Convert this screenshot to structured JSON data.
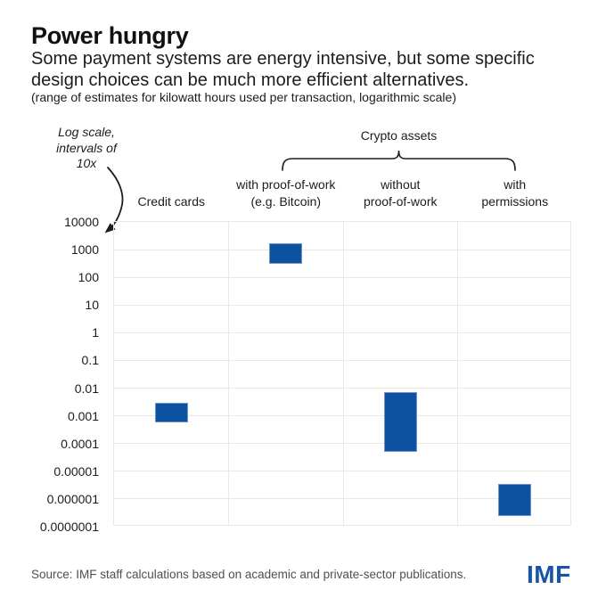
{
  "header": {
    "title": "Power hungry",
    "subtitle_lines": [
      "Some payment systems are energy intensive, but some specific",
      "design choices can be much more efficient alternatives."
    ],
    "note": "(range of estimates for kilowatt hours used per transaction, logarithmic scale)"
  },
  "annotations": {
    "log_scale_lines": [
      "Log scale,",
      "intervals of",
      "10x"
    ],
    "group_label": "Crypto assets"
  },
  "chart_data": {
    "type": "bar",
    "subtype": "floating-range-bars",
    "title": "Power hungry",
    "ylabel": "kilowatt hours used per transaction (log scale)",
    "scale": "logarithmic",
    "grid": true,
    "categories": [
      "Credit cards",
      "with proof-of-work (e.g. Bitcoin)",
      "without proof-of-work",
      "with permissions"
    ],
    "category_lines": [
      [
        "Credit cards"
      ],
      [
        "with proof-of-work",
        "(e.g. Bitcoin)"
      ],
      [
        "without",
        "proof-of-work"
      ],
      [
        "with",
        "permissions"
      ]
    ],
    "group_label": "Crypto assets",
    "group_span_categories": [
      "with proof-of-work (e.g. Bitcoin)",
      "with permissions"
    ],
    "ranges": [
      {
        "category": "Credit cards",
        "low": 0.0006,
        "high": 0.003
      },
      {
        "category": "with proof-of-work (e.g. Bitcoin)",
        "low": 300,
        "high": 1700
      },
      {
        "category": "without proof-of-work",
        "low": 5e-05,
        "high": 0.007
      },
      {
        "category": "with permissions",
        "low": 2.5e-07,
        "high": 3.5e-06
      }
    ],
    "y_tick_labels": [
      "10000",
      "1000",
      "100",
      "10",
      "1",
      "0.1",
      "0.01",
      "0.001",
      "0.0001",
      "0.00001",
      "0.000001",
      "0.0000001"
    ],
    "ylim_log10": [
      4,
      -7
    ]
  },
  "footer": {
    "source": "Source: IMF staff calculations based on academic and private-sector publications.",
    "logo": "IMF"
  },
  "colors": {
    "bar": "#0d52a0",
    "bar_edge": "#6f94c9",
    "grid": "#ece8dd",
    "logo": "#1a54a8",
    "ink": "#1c1c1c"
  }
}
